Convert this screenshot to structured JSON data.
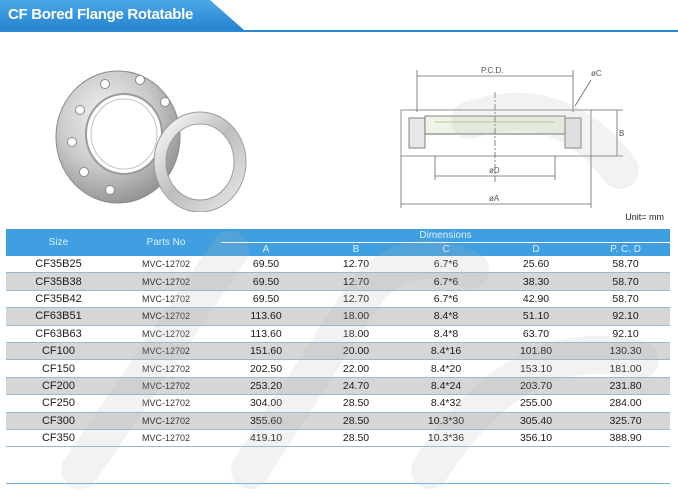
{
  "title": "CF Bored Flange Rotatable",
  "unit": "Unit= mm",
  "drawing_labels": {
    "pcd": "P.C.D.",
    "c": "øC",
    "b": "B",
    "d": "øD",
    "a": "øA"
  },
  "table": {
    "size_header": "Size",
    "parts_header": "Parts No",
    "dimensions_header": "Dimensions",
    "dim_columns": [
      "A",
      "B",
      "C",
      "D",
      "P. C. D"
    ],
    "rows": [
      {
        "size": "CF35B25",
        "part": "MVC-12702",
        "a": "69.50",
        "b": "12.70",
        "c": "6.7*6",
        "d": "25.60",
        "pcd": "58.70",
        "shade": false
      },
      {
        "size": "CF35B38",
        "part": "MVC-12702",
        "a": "69.50",
        "b": "12.70",
        "c": "6.7*6",
        "d": "38.30",
        "pcd": "58.70",
        "shade": true
      },
      {
        "size": "CF35B42",
        "part": "MVC-12702",
        "a": "69.50",
        "b": "12.70",
        "c": "6.7*6",
        "d": "42.90",
        "pcd": "58.70",
        "shade": false
      },
      {
        "size": "CF63B51",
        "part": "MVC-12702",
        "a": "113.60",
        "b": "18.00",
        "c": "8.4*8",
        "d": "51.10",
        "pcd": "92.10",
        "shade": true
      },
      {
        "size": "CF63B63",
        "part": "MVC-12702",
        "a": "113.60",
        "b": "18.00",
        "c": "8.4*8",
        "d": "63.70",
        "pcd": "92.10",
        "shade": false
      },
      {
        "size": "CF100",
        "part": "MVC-12702",
        "a": "151.60",
        "b": "20.00",
        "c": "8.4*16",
        "d": "101.80",
        "pcd": "130.30",
        "shade": true
      },
      {
        "size": "CF150",
        "part": "MVC-12702",
        "a": "202.50",
        "b": "22.00",
        "c": "8.4*20",
        "d": "153.10",
        "pcd": "181.00",
        "shade": false
      },
      {
        "size": "CF200",
        "part": "MVC-12702",
        "a": "253.20",
        "b": "24.70",
        "c": "8.4*24",
        "d": "203.70",
        "pcd": "231.80",
        "shade": true
      },
      {
        "size": "CF250",
        "part": "MVC-12702",
        "a": "304.00",
        "b": "28.50",
        "c": "8.4*32",
        "d": "255.00",
        "pcd": "284.00",
        "shade": false
      },
      {
        "size": "CF300",
        "part": "MVC-12702",
        "a": "355.60",
        "b": "28.50",
        "c": "10.3*30",
        "d": "305.40",
        "pcd": "325.70",
        "shade": true
      },
      {
        "size": "CF350",
        "part": "MVC-12702",
        "a": "419.10",
        "b": "28.50",
        "c": "10.3*36",
        "d": "356.10",
        "pcd": "388.90",
        "shade": false
      }
    ]
  }
}
